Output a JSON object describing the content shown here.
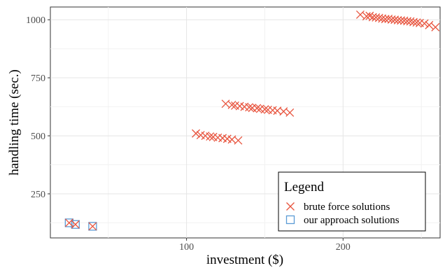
{
  "chart_data": {
    "type": "scatter",
    "xlabel": "investment ($)",
    "ylabel": "handling time (sec.)",
    "xlim": [
      13,
      262
    ],
    "ylim": [
      60,
      1055
    ],
    "x_ticks": [
      100,
      200
    ],
    "y_ticks": [
      250,
      500,
      750,
      1000
    ],
    "grid": true,
    "legend": {
      "title": "Legend",
      "position": "bottom-right"
    },
    "series": [
      {
        "name": "brute force solutions",
        "marker": "x",
        "color": "#e8553f",
        "points": [
          [
            211,
            1022
          ],
          [
            215,
            1015
          ],
          [
            217,
            1017
          ],
          [
            219,
            1011
          ],
          [
            221,
            1010
          ],
          [
            223,
            1008
          ],
          [
            225,
            1005
          ],
          [
            227,
            1003
          ],
          [
            229,
            1004
          ],
          [
            231,
            1001
          ],
          [
            233,
            1000
          ],
          [
            235,
            998
          ],
          [
            237,
            997
          ],
          [
            239,
            996
          ],
          [
            241,
            994
          ],
          [
            243,
            993
          ],
          [
            245,
            990
          ],
          [
            247,
            988
          ],
          [
            249,
            986
          ],
          [
            252,
            984
          ],
          [
            255,
            977
          ],
          [
            259,
            968
          ],
          [
            125,
            638
          ],
          [
            129,
            633
          ],
          [
            131,
            630
          ],
          [
            134,
            628
          ],
          [
            137,
            625
          ],
          [
            140,
            623
          ],
          [
            142,
            620
          ],
          [
            145,
            619
          ],
          [
            147,
            616
          ],
          [
            150,
            614
          ],
          [
            152,
            612
          ],
          [
            155,
            610
          ],
          [
            158,
            608
          ],
          [
            162,
            605
          ],
          [
            166,
            600
          ],
          [
            106,
            510
          ],
          [
            109,
            503
          ],
          [
            112,
            500
          ],
          [
            115,
            497
          ],
          [
            117,
            495
          ],
          [
            120,
            492
          ],
          [
            123,
            490
          ],
          [
            126,
            487
          ],
          [
            129,
            484
          ],
          [
            133,
            480
          ],
          [
            25,
            125
          ],
          [
            29,
            118
          ],
          [
            40,
            110
          ]
        ]
      },
      {
        "name": "our approach solutions",
        "marker": "square",
        "color": "#5b9bd5",
        "points": [
          [
            25,
            125
          ],
          [
            29,
            118
          ],
          [
            40,
            110
          ]
        ]
      }
    ]
  }
}
